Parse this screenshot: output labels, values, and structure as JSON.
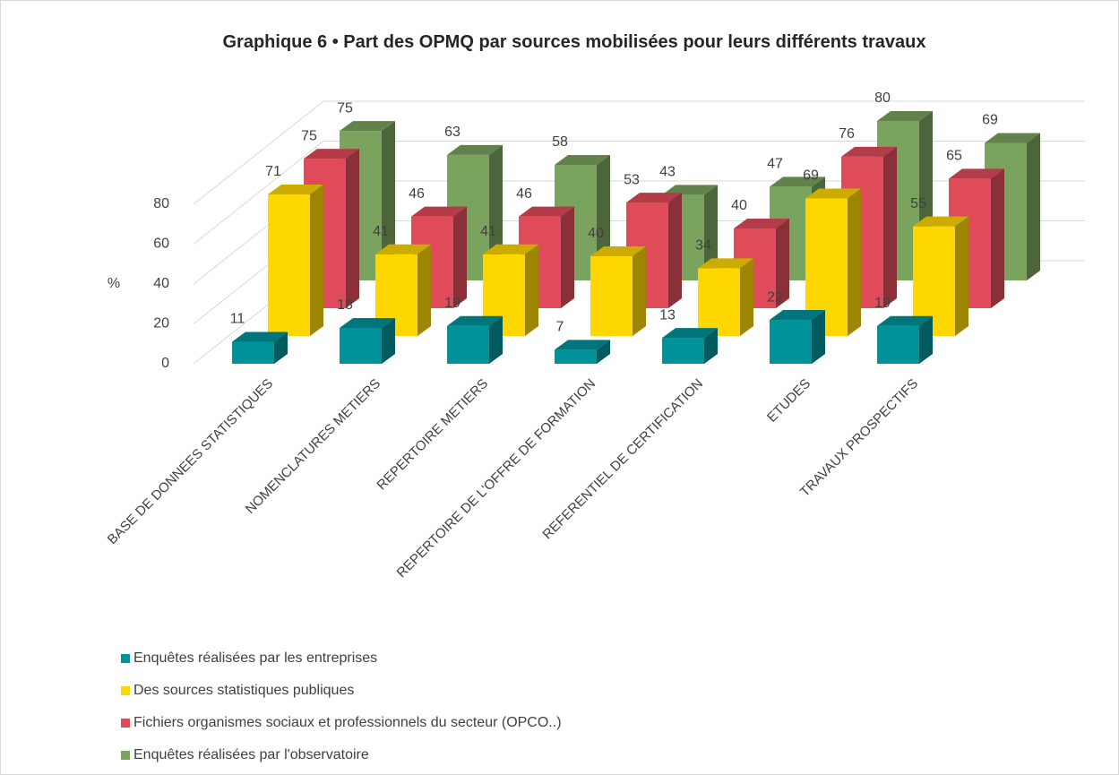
{
  "chart_data": {
    "type": "bar3d",
    "title": "Graphique 6 • Part des OPMQ par sources mobilisées pour leurs différents travaux",
    "ylabel": "%",
    "categories": [
      "BASE DE DONNEES STATISTIQUES",
      "NOMENCLATURES METIERS",
      "REPERTOIRE METIERS",
      "REPERTOIRE DE L'OFFRE DE FORMATION",
      "REFERENTIEL DE CERTIFICATION",
      "ETUDES",
      "TRAVAUX PROSPECTIFS"
    ],
    "series": [
      {
        "name": "Enquêtes réalisées par les entreprises",
        "color": "#00929b",
        "values": [
          11,
          18,
          19,
          7,
          13,
          22,
          19
        ]
      },
      {
        "name": "Des sources statistiques publiques",
        "color": "#ffd700",
        "values": [
          71,
          41,
          41,
          40,
          34,
          69,
          55
        ]
      },
      {
        "name": "Fichiers organismes sociaux et professionnels du secteur (OPCO..)",
        "color": "#e04b5a",
        "values": [
          75,
          46,
          46,
          53,
          40,
          76,
          65
        ]
      },
      {
        "name": "Enquêtes réalisées par l'observatoire",
        "color": "#7aa35e",
        "values": [
          75,
          63,
          58,
          43,
          47,
          80,
          69
        ]
      }
    ],
    "ylim": [
      0,
      80
    ],
    "yticks": [
      0,
      20,
      40,
      60,
      80
    ],
    "grid": true
  }
}
